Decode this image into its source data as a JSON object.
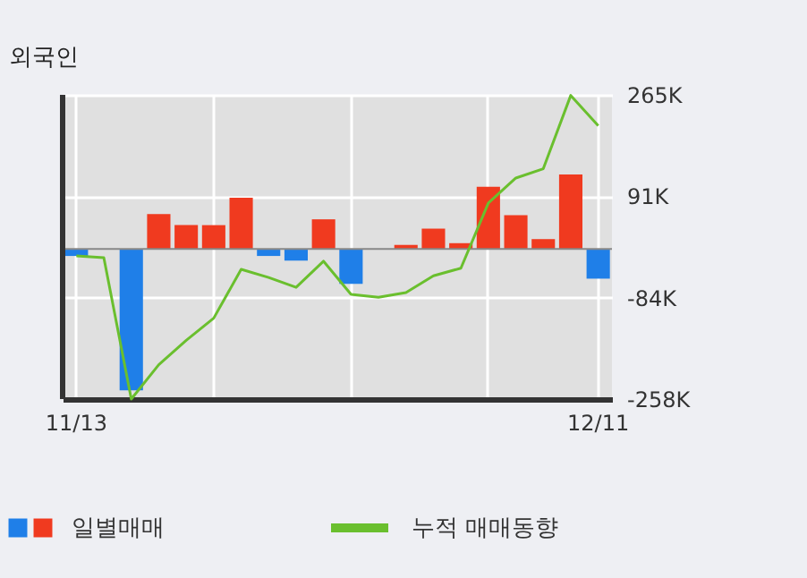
{
  "chart_data": {
    "type": "bar",
    "title": "외국인",
    "categories": [
      "11/13",
      null,
      null,
      null,
      null,
      null,
      null,
      null,
      null,
      null,
      null,
      null,
      null,
      null,
      null,
      null,
      null,
      null,
      null,
      "12/11"
    ],
    "series": [
      {
        "name": "일별매매",
        "colors": [
          "#1f7fe8",
          "#1f7fe8",
          "#1f7fe8",
          "#f03a1f",
          "#f03a1f",
          "#f03a1f",
          "#f03a1f",
          "#1f7fe8",
          "#1f7fe8",
          "#f03a1f",
          "#1f7fe8",
          "#f03a1f",
          "#f03a1f",
          "#f03a1f",
          "#f03a1f",
          "#f03a1f",
          "#f03a1f",
          "#f03a1f",
          "#f03a1f",
          "#1f7fe8"
        ],
        "values": [
          -12000,
          null,
          -243000,
          60000,
          41000,
          41000,
          88000,
          -12000,
          -20000,
          51000,
          -60000,
          null,
          7000,
          35000,
          10000,
          107000,
          58000,
          17000,
          128000,
          -51000
        ]
      },
      {
        "name": "누적 매매동향",
        "type": "line",
        "color": "#6abf2e",
        "values": [
          -12000,
          -15000,
          -258000,
          -199000,
          -157000,
          -119000,
          -35000,
          -49000,
          -66000,
          -21000,
          -78000,
          -83000,
          -75000,
          -46000,
          -33000,
          79000,
          122000,
          138000,
          264000,
          212000
        ]
      }
    ],
    "ylim": [
      -258000,
      265000
    ],
    "yticks": [
      {
        "value": -258000,
        "label": "-258K"
      },
      {
        "value": -84000,
        "label": "-84K"
      },
      {
        "value": 91000,
        "label": "91K"
      },
      {
        "value": 265000,
        "label": "265K"
      }
    ],
    "ref_lines": [
      {
        "axis": "y",
        "value": 0,
        "color": "#888888"
      }
    ],
    "grid": true,
    "legend": "bottom",
    "line_style": "solid",
    "marker": "none"
  }
}
